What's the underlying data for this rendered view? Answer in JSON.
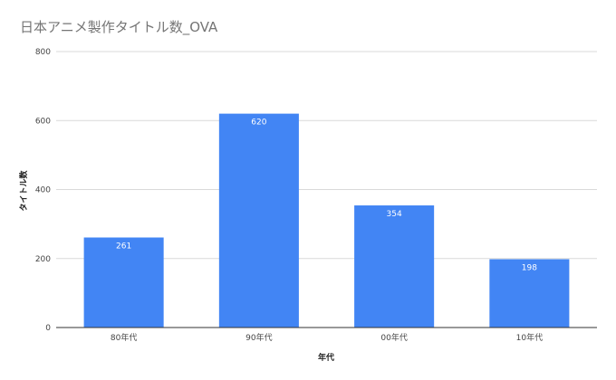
{
  "chart_data": {
    "type": "bar",
    "title": "日本アニメ製作タイトル数_OVA",
    "xlabel": "年代",
    "ylabel": "タイトル数",
    "categories": [
      "80年代",
      "90年代",
      "00年代",
      "10年代"
    ],
    "values": [
      261,
      620,
      354,
      198
    ],
    "data_labels": [
      "261",
      "620",
      "354",
      "198"
    ],
    "ylim": [
      0,
      800
    ],
    "yticks": [
      0,
      200,
      400,
      600,
      800
    ],
    "ytick_labels": [
      "0",
      "200",
      "400",
      "600",
      "800"
    ],
    "grid": true,
    "legend": "none",
    "bar_color": "#4285F4",
    "grid_color": "#D9D9D9",
    "baseline_color": "#333333"
  }
}
